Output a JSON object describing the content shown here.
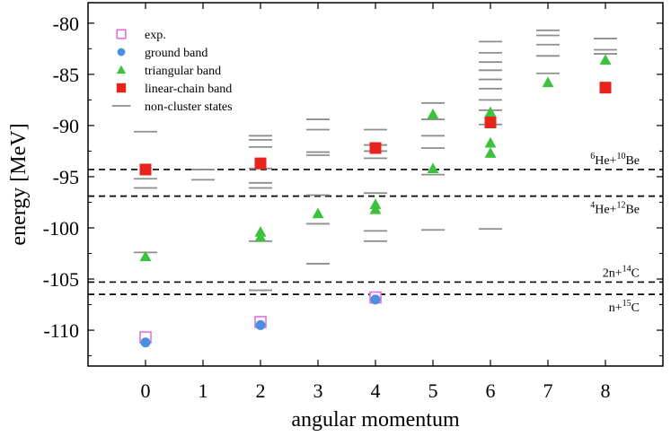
{
  "chart_data": {
    "type": "scatter",
    "xlabel": "angular momentum",
    "ylabel": "energy [MeV]",
    "xlim": [
      -1,
      9
    ],
    "ylim": [
      -113.5,
      -78
    ],
    "x_ticks": [
      0,
      1,
      2,
      3,
      4,
      5,
      6,
      7,
      8
    ],
    "y_ticks": [
      -80,
      -85,
      -90,
      -95,
      -100,
      -105,
      -110
    ],
    "legend": {
      "placement": "top-left",
      "entries": [
        "exp.",
        "ground band",
        "triangular band",
        "linear-chain band",
        "non-cluster states"
      ]
    },
    "colors": {
      "exp": "#e070e0",
      "ground": "#4b8fe0",
      "triangular": "#3cc23c",
      "linear": "#e8231c",
      "noncluster": "#8e8e8e",
      "threshold": "#000000"
    },
    "thresholds": [
      {
        "energy": -94.3,
        "label_base": "6",
        "label_a": "He+",
        "label_sup": "10",
        "label_b": "Be"
      },
      {
        "energy": -96.9,
        "label_base": "4",
        "label_a": "He+",
        "label_sup": "12",
        "label_b": "Be"
      },
      {
        "energy": -105.3,
        "label_base": "",
        "label_a": "2n+",
        "label_sup": "14",
        "label_b": "C"
      },
      {
        "energy": -106.5,
        "label_base": "",
        "label_a": "n+",
        "label_sup": "15",
        "label_b": "C"
      }
    ],
    "series": [
      {
        "name": "exp.",
        "marker": "open-square",
        "points": [
          [
            0,
            -110.7
          ],
          [
            2,
            -109.2
          ],
          [
            4,
            -106.8
          ]
        ]
      },
      {
        "name": "ground band",
        "marker": "circle",
        "points": [
          [
            0,
            -111.2
          ],
          [
            2,
            -109.5
          ],
          [
            4,
            -107.0
          ]
        ]
      },
      {
        "name": "triangular band",
        "marker": "triangle",
        "points": [
          [
            0,
            -102.8
          ],
          [
            2,
            -100.4
          ],
          [
            2,
            -100.9
          ],
          [
            3,
            -98.6
          ],
          [
            4,
            -97.7
          ],
          [
            4,
            -98.2
          ],
          [
            5,
            -88.9
          ],
          [
            5,
            -94.2
          ],
          [
            6,
            -88.7
          ],
          [
            6,
            -91.7
          ],
          [
            6,
            -92.7
          ],
          [
            7,
            -85.8
          ],
          [
            8,
            -83.6
          ]
        ]
      },
      {
        "name": "linear-chain band",
        "marker": "filled-square",
        "points": [
          [
            0,
            -94.3
          ],
          [
            2,
            -93.7
          ],
          [
            4,
            -92.2
          ],
          [
            6,
            -89.7
          ],
          [
            8,
            -86.3
          ]
        ]
      },
      {
        "name": "non-cluster states",
        "marker": "dash",
        "points": [
          [
            0,
            -90.6
          ],
          [
            0,
            -95.2
          ],
          [
            0,
            -96.1
          ],
          [
            0,
            -102.4
          ],
          [
            1,
            -94.3
          ],
          [
            1,
            -95.3
          ],
          [
            2,
            -91.0
          ],
          [
            2,
            -91.4
          ],
          [
            2,
            -92.1
          ],
          [
            2,
            -94.2
          ],
          [
            2,
            -95.6
          ],
          [
            2,
            -96.1
          ],
          [
            2,
            -101.3
          ],
          [
            2,
            -106.1
          ],
          [
            3,
            -89.4
          ],
          [
            3,
            -90.4
          ],
          [
            3,
            -92.6
          ],
          [
            3,
            -92.9
          ],
          [
            3,
            -96.8
          ],
          [
            3,
            -99.6
          ],
          [
            3,
            -103.5
          ],
          [
            4,
            -90.4
          ],
          [
            4,
            -91.9
          ],
          [
            4,
            -92.5
          ],
          [
            4,
            -93.2
          ],
          [
            4,
            -96.6
          ],
          [
            4,
            -100.3
          ],
          [
            4,
            -101.3
          ],
          [
            5,
            -87.8
          ],
          [
            5,
            -89.4
          ],
          [
            5,
            -91.0
          ],
          [
            5,
            -92.2
          ],
          [
            5,
            -94.8
          ],
          [
            5,
            -100.2
          ],
          [
            6,
            -81.8
          ],
          [
            6,
            -82.9
          ],
          [
            6,
            -83.8
          ],
          [
            6,
            -84.6
          ],
          [
            6,
            -85.5
          ],
          [
            6,
            -86.4
          ],
          [
            6,
            -87.5
          ],
          [
            6,
            -88.5
          ],
          [
            6,
            -89.9
          ],
          [
            6,
            -100.1
          ],
          [
            7,
            -80.7
          ],
          [
            7,
            -81.2
          ],
          [
            7,
            -82.1
          ],
          [
            7,
            -83.2
          ],
          [
            7,
            -84.9
          ],
          [
            8,
            -81.5
          ],
          [
            8,
            -82.6
          ],
          [
            8,
            -83.0
          ]
        ]
      }
    ]
  }
}
